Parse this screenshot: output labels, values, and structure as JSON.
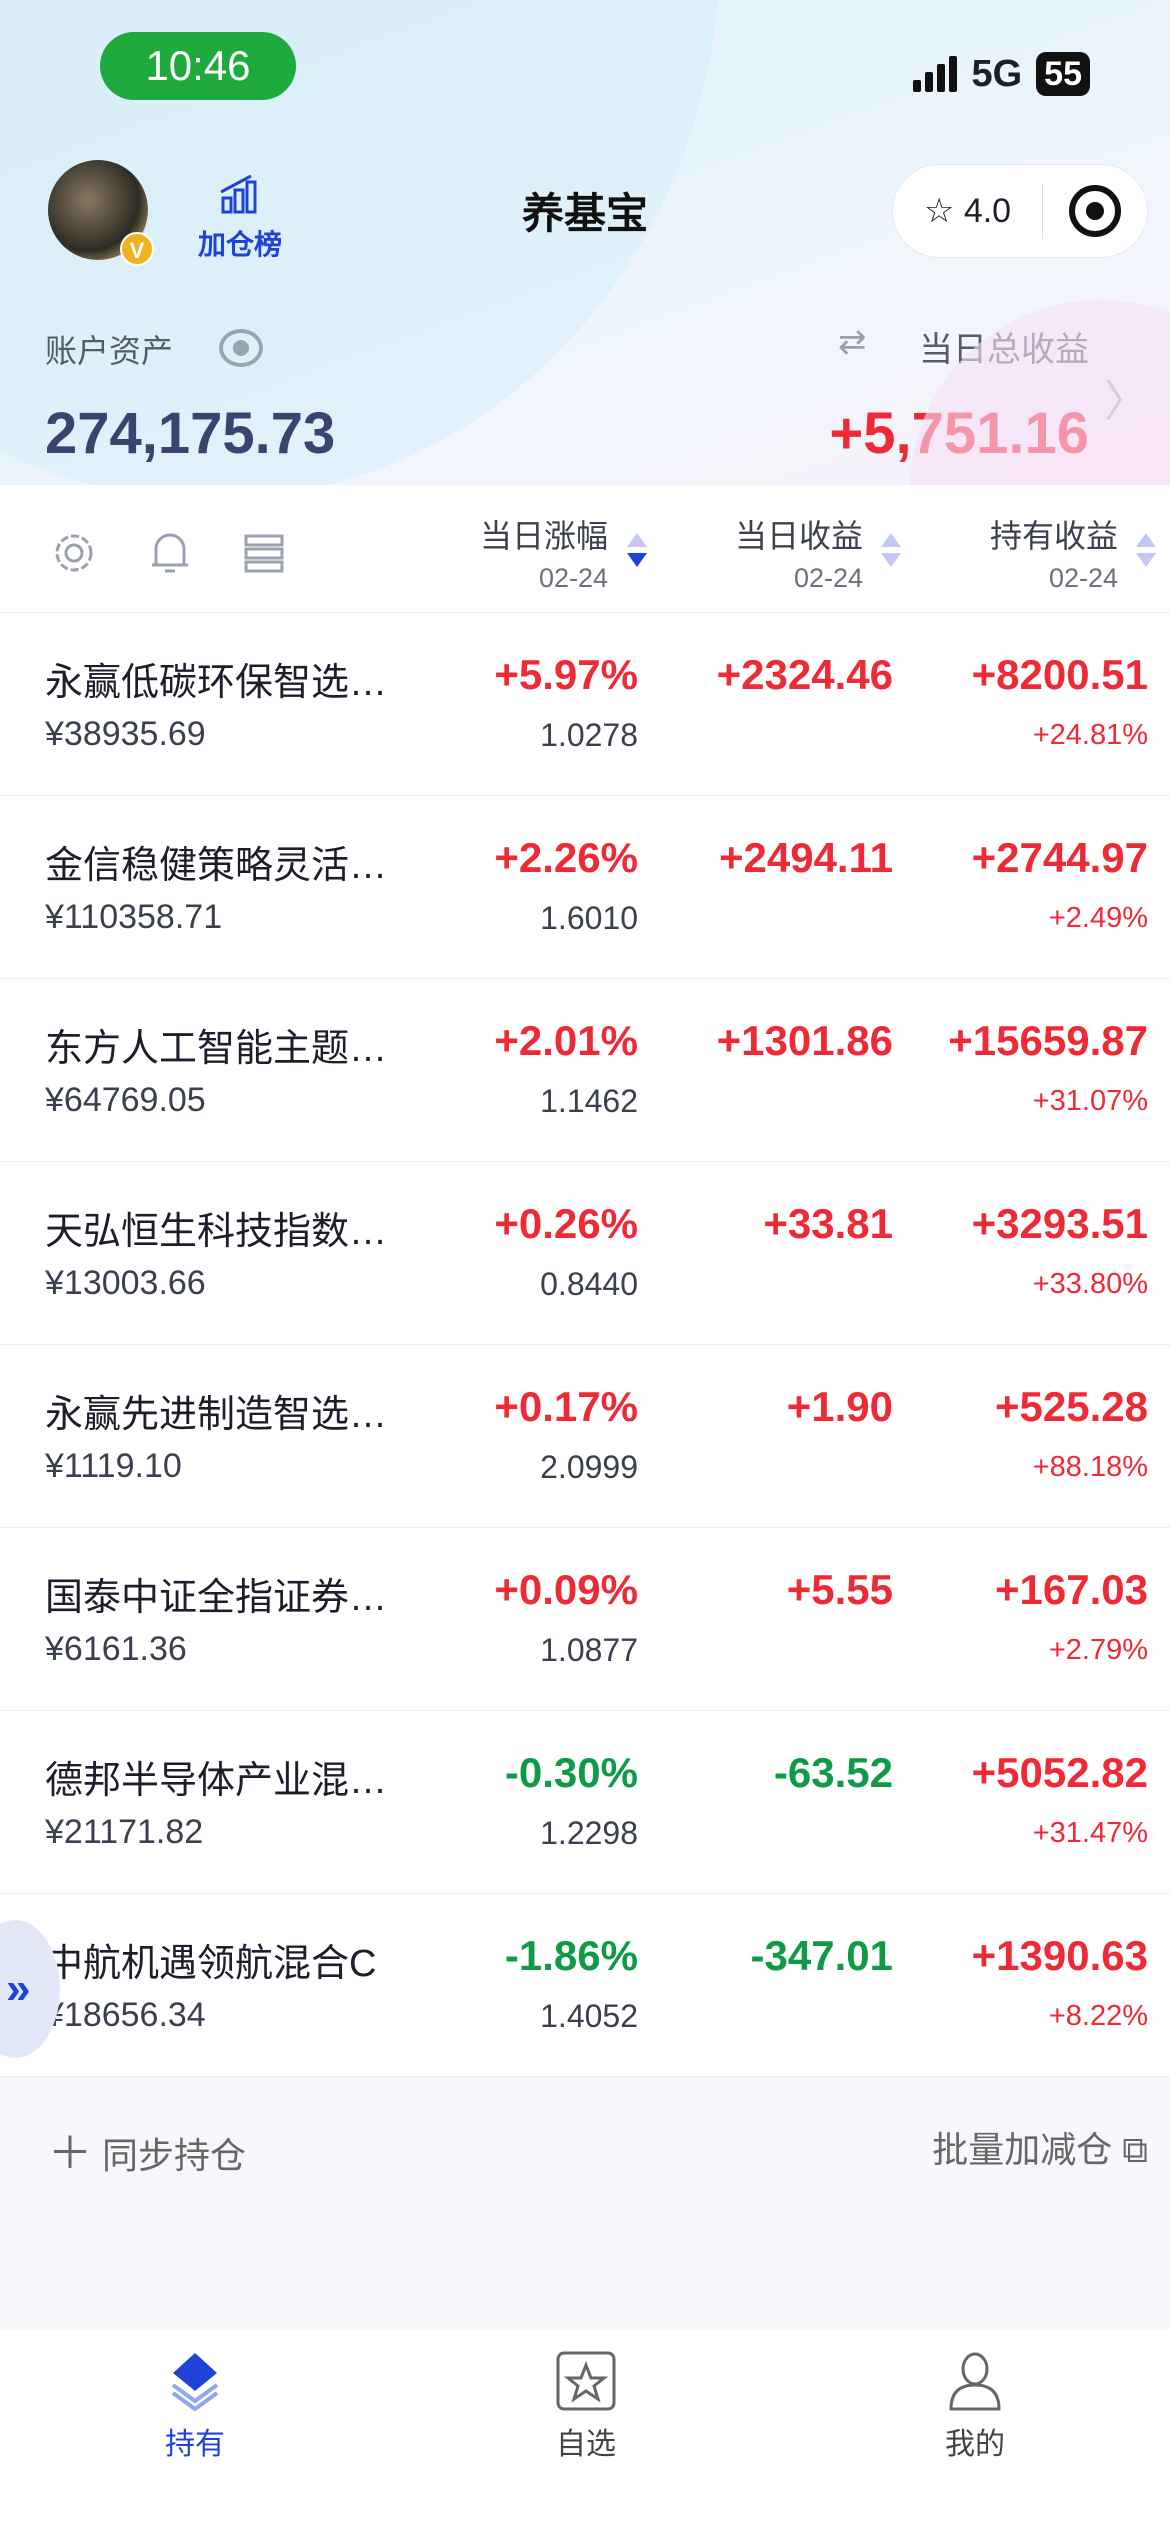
{
  "status": {
    "time": "10:46",
    "network": "5G",
    "battery": "55"
  },
  "header": {
    "title": "养基宝",
    "rank_label": "加仓榜",
    "rating": "4.0",
    "asset_label": "账户资产",
    "asset_value": "274,175.73",
    "daily_label": "当日总收益",
    "daily_value": "+5,751.16"
  },
  "table_header": {
    "col1": "当日涨幅",
    "col2": "当日收益",
    "col3": "持有收益",
    "date1": "02-24",
    "date2": "02-24",
    "date3": "02-24"
  },
  "rows": [
    {
      "name": "永赢低碳环保智选…",
      "amount": "¥38935.69",
      "change": "+5.97%",
      "nav": "1.0278",
      "daily": "+2324.46",
      "hold": "+8200.51",
      "hold_pct": "+24.81%",
      "dir": "up",
      "dir2": "up"
    },
    {
      "name": "金信稳健策略灵活…",
      "amount": "¥110358.71",
      "change": "+2.26%",
      "nav": "1.6010",
      "daily": "+2494.11",
      "hold": "+2744.97",
      "hold_pct": "+2.49%",
      "dir": "up",
      "dir2": "up"
    },
    {
      "name": "东方人工智能主题…",
      "amount": "¥64769.05",
      "change": "+2.01%",
      "nav": "1.1462",
      "daily": "+1301.86",
      "hold": "+15659.87",
      "hold_pct": "+31.07%",
      "dir": "up",
      "dir2": "up"
    },
    {
      "name": "天弘恒生科技指数…",
      "amount": "¥13003.66",
      "change": "+0.26%",
      "nav": "0.8440",
      "daily": "+33.81",
      "hold": "+3293.51",
      "hold_pct": "+33.80%",
      "dir": "up",
      "dir2": "up"
    },
    {
      "name": "永赢先进制造智选…",
      "amount": "¥1119.10",
      "change": "+0.17%",
      "nav": "2.0999",
      "daily": "+1.90",
      "hold": "+525.28",
      "hold_pct": "+88.18%",
      "dir": "up",
      "dir2": "up"
    },
    {
      "name": "国泰中证全指证券…",
      "amount": "¥6161.36",
      "change": "+0.09%",
      "nav": "1.0877",
      "daily": "+5.55",
      "hold": "+167.03",
      "hold_pct": "+2.79%",
      "dir": "up",
      "dir2": "up"
    },
    {
      "name": "德邦半导体产业混…",
      "amount": "¥21171.82",
      "change": "-0.30%",
      "nav": "1.2298",
      "daily": "-63.52",
      "hold": "+5052.82",
      "hold_pct": "+31.47%",
      "dir": "down",
      "dir2": "up"
    },
    {
      "name": "中航机遇领航混合C",
      "amount": "¥18656.34",
      "change": "-1.86%",
      "nav": "1.4052",
      "daily": "-347.01",
      "hold": "+1390.63",
      "hold_pct": "+8.22%",
      "dir": "down",
      "dir2": "up"
    }
  ],
  "footer": {
    "sync_label": "同步持仓",
    "batch_label": "批量加减仓"
  },
  "tabs": [
    {
      "label": "持有",
      "active": true
    },
    {
      "label": "自选"
    },
    {
      "label": "我的"
    }
  ],
  "colors": {
    "up": "#ee2a36",
    "down": "#0f9a48",
    "accent": "#1f43d8"
  }
}
